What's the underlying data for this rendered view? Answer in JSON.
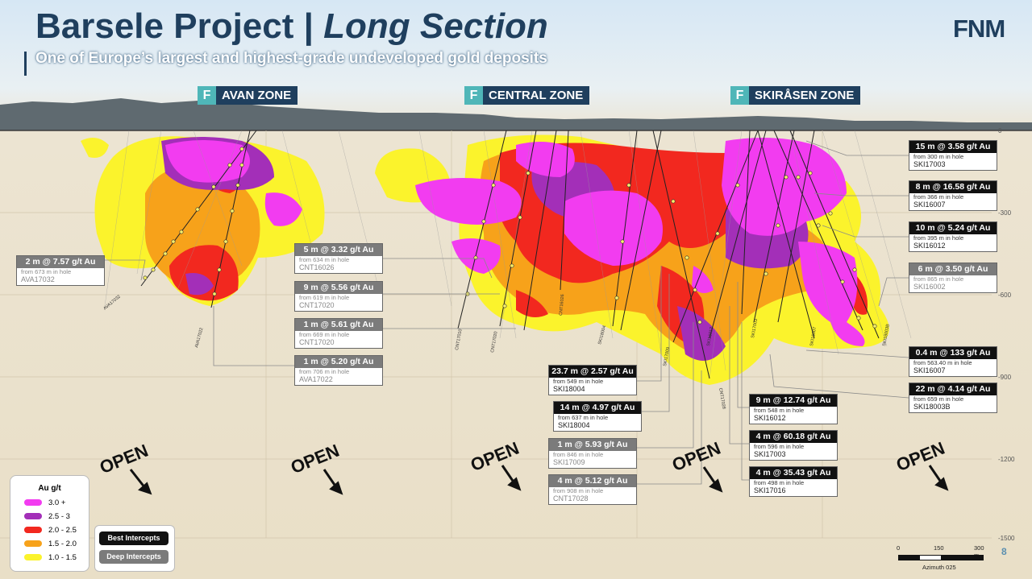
{
  "header": {
    "title_part1": "Barsele Project | ",
    "title_part2": "Long Section",
    "subtitle": "One of Europe’s largest and highest-grade undeveloped gold deposits",
    "logo_text": "FNM",
    "page_number": "8"
  },
  "zones": [
    {
      "label": "AVAN ZONE",
      "icon": "F"
    },
    {
      "label": "CENTRAL ZONE",
      "icon": "F"
    },
    {
      "label": "SKIRÅSEN ZONE",
      "icon": "F"
    }
  ],
  "intercepts": [
    {
      "type": "deep",
      "headline": "2 m @ 7.57 g/t Au",
      "from": "from 673 m in hole",
      "hole": "AVA17032"
    },
    {
      "type": "deep",
      "headline": "5 m @ 3.32 g/t Au",
      "from": "from 634 m in hole",
      "hole": "CNT16026"
    },
    {
      "type": "deep",
      "headline": "9 m @ 5.56 g/t Au",
      "from": "from 619 m in hole",
      "hole": "CNT17020"
    },
    {
      "type": "deep",
      "headline": "1 m @ 5.61 g/t Au",
      "from": "from 669 m in hole",
      "hole": "CNT17020"
    },
    {
      "type": "deep",
      "headline": "1 m @ 5.20 g/t Au",
      "from": "from 706 m in hole",
      "hole": "AVA17022"
    },
    {
      "type": "best",
      "headline": "23.7 m @ 2.57 g/t Au",
      "from": "from 549 m in hole",
      "hole": "SKI18004"
    },
    {
      "type": "best",
      "headline": "14 m @ 4.97 g/t Au",
      "from": "from 637 m in hole",
      "hole": "SKI18004"
    },
    {
      "type": "deep",
      "headline": "1 m @ 5.93 g/t Au",
      "from": "from 846 m in hole",
      "hole": "SKI17009"
    },
    {
      "type": "deep",
      "headline": "4 m @ 5.12 g/t Au",
      "from": "from 908 m in hole",
      "hole": "CNT17028"
    },
    {
      "type": "best",
      "headline": "9 m @ 12.74 g/t Au",
      "from": "from 548 m in hole",
      "hole": "SKI16012"
    },
    {
      "type": "best",
      "headline": "4 m @ 60.18 g/t Au",
      "from": "from 596 m in hole",
      "hole": "SKI17003"
    },
    {
      "type": "best",
      "headline": "4 m @ 35.43 g/t Au",
      "from": "from 498 m in hole",
      "hole": "SKI17016"
    },
    {
      "type": "best",
      "headline": "15 m @ 3.58 g/t Au",
      "from": "from 300 m in hole",
      "hole": "SKI17003"
    },
    {
      "type": "best",
      "headline": "8 m @ 16.58 g/t Au",
      "from": "from 366 m in hole",
      "hole": "SKI16007"
    },
    {
      "type": "best",
      "headline": "10 m @ 5.24 g/t Au",
      "from": "from 395 m in hole",
      "hole": "SKI16012"
    },
    {
      "type": "deep",
      "headline": "6 m @ 3.50 g/t Au",
      "from": "from 865 m in hole",
      "hole": "SKI16002"
    },
    {
      "type": "best",
      "headline": "0.4 m @ 133 g/t Au",
      "from": "from 563.40 m in hole",
      "hole": "SKI16007"
    },
    {
      "type": "best",
      "headline": "22 m @ 4.14 g/t Au",
      "from": "from 659 m in hole",
      "hole": "SKI18003B"
    }
  ],
  "open_labels": [
    "OPEN",
    "OPEN",
    "OPEN",
    "OPEN",
    "OPEN"
  ],
  "depth_labels": [
    "0",
    "-300",
    "-600",
    "-900",
    "-1200",
    "-1500"
  ],
  "drill_hole_labels": [
    "AVA17032",
    "AVA17022",
    "CNT17010",
    "CNT17020",
    "CNT16026",
    "SKI18004",
    "SKI17009",
    "CNT17028",
    "SKI16012",
    "SKI17003",
    "SKI16007",
    "SKI18003B"
  ],
  "legend": {
    "title": "Au g/t",
    "items": [
      {
        "label": "3.0 +",
        "color": "#f23cf0"
      },
      {
        "label": "2.5 - 3",
        "color": "#a32fb8"
      },
      {
        "label": "2.0 - 2.5",
        "color": "#f2281f"
      },
      {
        "label": "1.5 - 2.0",
        "color": "#f7a21a"
      },
      {
        "label": "1.0 - 1.5",
        "color": "#fbf32c"
      }
    ],
    "key_best": "Best Intercepts",
    "key_deep": "Deep Intercepts"
  },
  "scale_bar": {
    "ticks": [
      "0",
      "150",
      "300 m"
    ],
    "azimuth": "Azimuth 025"
  },
  "colors": {
    "title": "#1f3f5e",
    "accent": "#4fb6b8",
    "best": "#111111",
    "deep": "#7b7b7b"
  }
}
